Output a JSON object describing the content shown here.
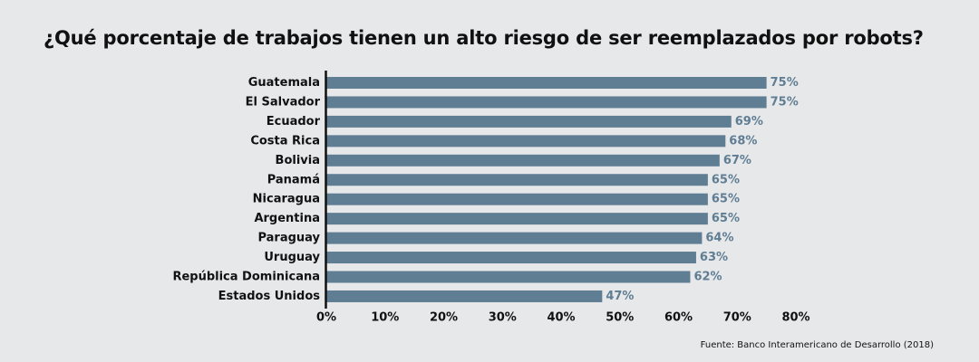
{
  "title": "¿Qué porcentaje de trabajos tienen un alto riesgo de ser reemplazados por robots?",
  "source": "Fuente: Banco Interamericano de Desarrollo (2018)",
  "colors": {
    "bar": "#5f7d93",
    "value_label": "#5f7d93",
    "axis": "#111111",
    "background": "#e7e8ea"
  },
  "chart_data": {
    "type": "bar",
    "orientation": "horizontal",
    "categories": [
      "Guatemala",
      "El Salvador",
      "Ecuador",
      "Costa Rica",
      "Bolivia",
      "Panamá",
      "Nicaragua",
      "Argentina",
      "Paraguay",
      "Uruguay",
      "República Dominicana",
      "Estados Unidos"
    ],
    "values": [
      75,
      75,
      69,
      68,
      67,
      65,
      65,
      65,
      64,
      63,
      62,
      47
    ],
    "value_labels": [
      "75%",
      "75%",
      "69%",
      "68%",
      "67%",
      "65%",
      "65%",
      "65%",
      "64%",
      "63%",
      "62%",
      "47%"
    ],
    "xlim": [
      0,
      80
    ],
    "xticks": [
      0,
      10,
      20,
      30,
      40,
      50,
      60,
      70,
      80
    ],
    "xtick_labels": [
      "0%",
      "10%",
      "20%",
      "30%",
      "40%",
      "50%",
      "60%",
      "70%",
      "80%"
    ],
    "grid": false,
    "legend": "none"
  }
}
